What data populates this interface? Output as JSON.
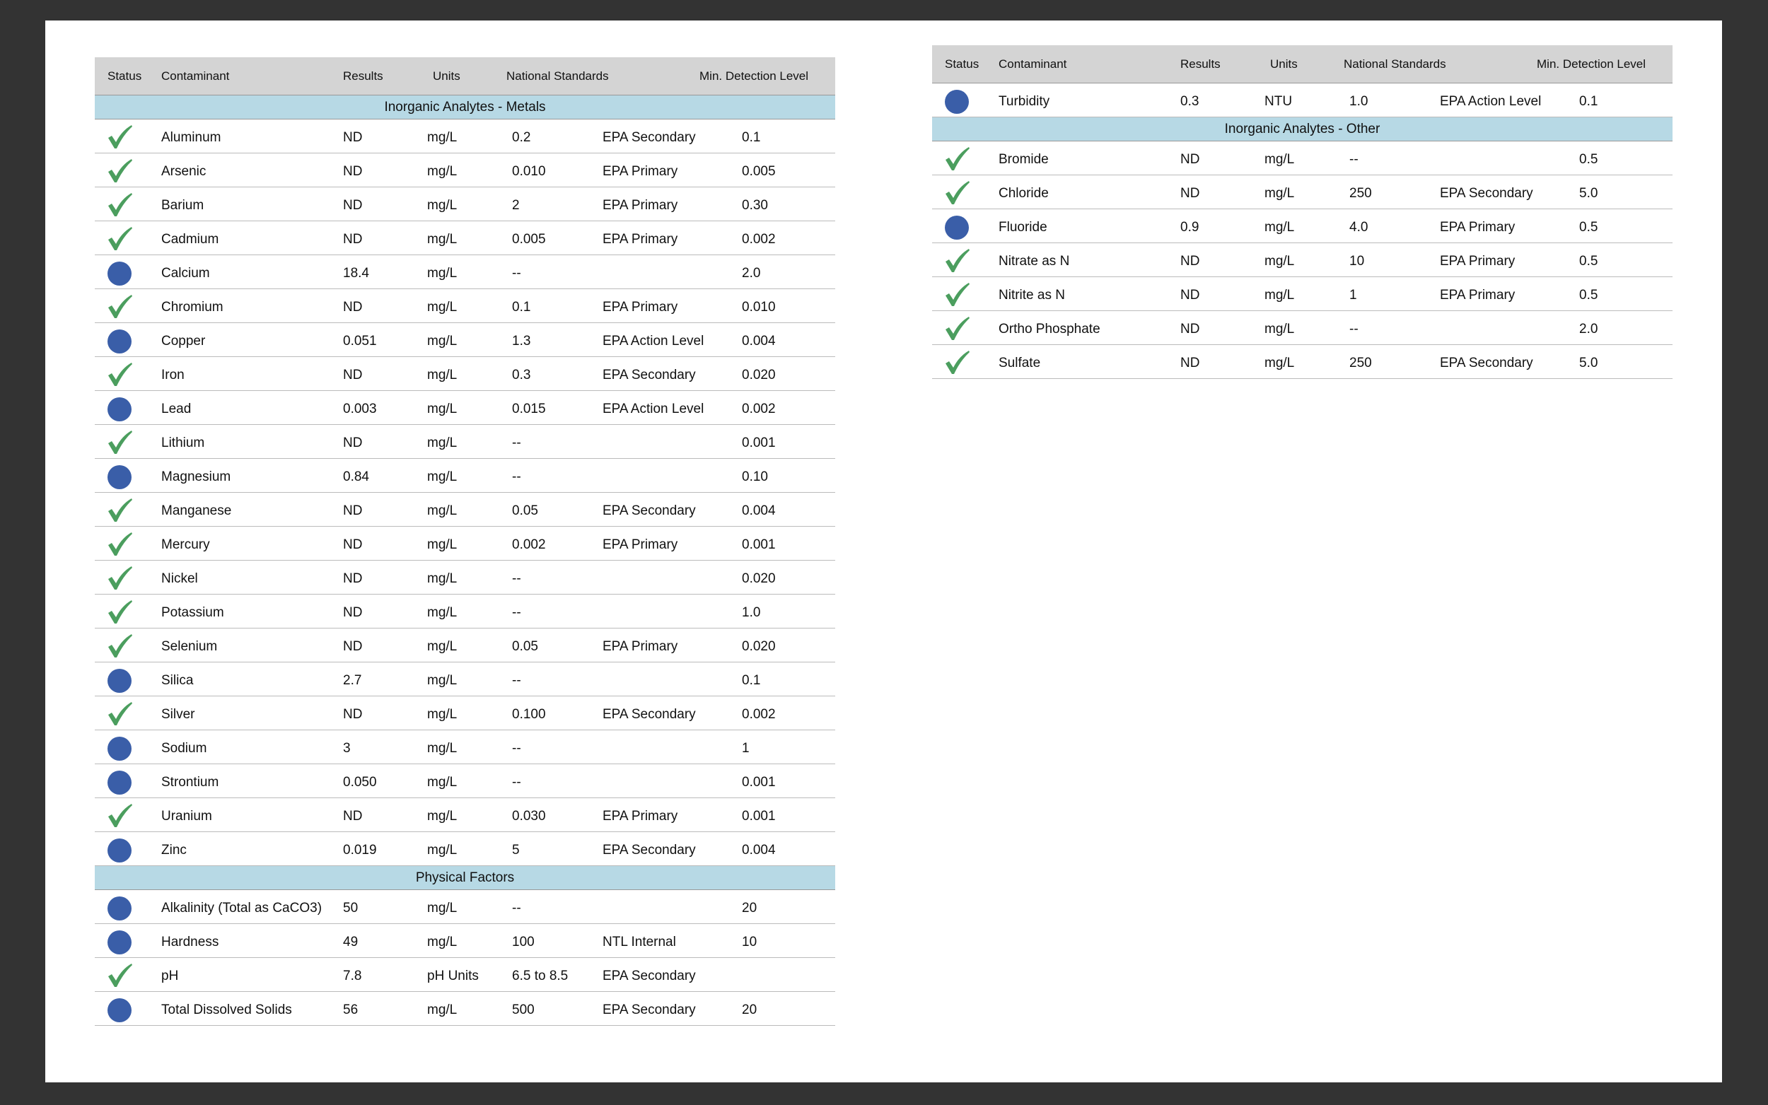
{
  "tables": [
    {
      "headers": [
        "Status",
        "Contaminant",
        "Results",
        "Units",
        "National Standards",
        "Min. Detection Level"
      ],
      "sections": [
        {
          "title": "Inorganic Analytes - Metals",
          "rows": [
            {
              "status": "check",
              "contaminant": "Aluminum",
              "results": "ND",
              "units": "mg/L",
              "standard": "0.2",
              "source": "EPA Secondary",
              "mdl": "0.1"
            },
            {
              "status": "check",
              "contaminant": "Arsenic",
              "results": "ND",
              "units": "mg/L",
              "standard": "0.010",
              "source": "EPA Primary",
              "mdl": "0.005"
            },
            {
              "status": "check",
              "contaminant": "Barium",
              "results": "ND",
              "units": "mg/L",
              "standard": "2",
              "source": "EPA Primary",
              "mdl": "0.30"
            },
            {
              "status": "check",
              "contaminant": "Cadmium",
              "results": "ND",
              "units": "mg/L",
              "standard": "0.005",
              "source": "EPA Primary",
              "mdl": "0.002"
            },
            {
              "status": "dot",
              "contaminant": "Calcium",
              "results": "18.4",
              "units": "mg/L",
              "standard": "--",
              "mdl": "2.0"
            },
            {
              "status": "check",
              "contaminant": "Chromium",
              "results": "ND",
              "units": "mg/L",
              "standard": "0.1",
              "source": "EPA Primary",
              "mdl": "0.010"
            },
            {
              "status": "dot",
              "contaminant": "Copper",
              "results": "0.051",
              "units": "mg/L",
              "standard": "1.3",
              "source": "EPA Action Level",
              "mdl": "0.004"
            },
            {
              "status": "check",
              "contaminant": "Iron",
              "results": "ND",
              "units": "mg/L",
              "standard": "0.3",
              "source": "EPA Secondary",
              "mdl": "0.020"
            },
            {
              "status": "dot",
              "contaminant": "Lead",
              "results": "0.003",
              "units": "mg/L",
              "standard": "0.015",
              "source": "EPA Action Level",
              "mdl": "0.002"
            },
            {
              "status": "check",
              "contaminant": "Lithium",
              "results": "ND",
              "units": "mg/L",
              "standard": "--",
              "mdl": "0.001"
            },
            {
              "status": "dot",
              "contaminant": "Magnesium",
              "results": "0.84",
              "units": "mg/L",
              "standard": "--",
              "mdl": "0.10"
            },
            {
              "status": "check",
              "contaminant": "Manganese",
              "results": "ND",
              "units": "mg/L",
              "standard": "0.05",
              "source": "EPA Secondary",
              "mdl": "0.004"
            },
            {
              "status": "check",
              "contaminant": "Mercury",
              "results": "ND",
              "units": "mg/L",
              "standard": "0.002",
              "source": "EPA Primary",
              "mdl": "0.001"
            },
            {
              "status": "check",
              "contaminant": "Nickel",
              "results": "ND",
              "units": "mg/L",
              "standard": "--",
              "mdl": "0.020"
            },
            {
              "status": "check",
              "contaminant": "Potassium",
              "results": "ND",
              "units": "mg/L",
              "standard": "--",
              "mdl": "1.0"
            },
            {
              "status": "check",
              "contaminant": "Selenium",
              "results": "ND",
              "units": "mg/L",
              "standard": "0.05",
              "source": "EPA Primary",
              "mdl": "0.020"
            },
            {
              "status": "dot",
              "contaminant": "Silica",
              "results": "2.7",
              "units": "mg/L",
              "standard": "--",
              "mdl": "0.1"
            },
            {
              "status": "check",
              "contaminant": "Silver",
              "results": "ND",
              "units": "mg/L",
              "standard": "0.100",
              "source": "EPA Secondary",
              "mdl": "0.002"
            },
            {
              "status": "dot",
              "contaminant": "Sodium",
              "results": "3",
              "units": "mg/L",
              "standard": "--",
              "mdl": "1"
            },
            {
              "status": "dot",
              "contaminant": "Strontium",
              "results": "0.050",
              "units": "mg/L",
              "standard": "--",
              "mdl": "0.001"
            },
            {
              "status": "check",
              "contaminant": "Uranium",
              "results": "ND",
              "units": "mg/L",
              "standard": "0.030",
              "source": "EPA Primary",
              "mdl": "0.001"
            },
            {
              "status": "dot",
              "contaminant": "Zinc",
              "results": "0.019",
              "units": "mg/L",
              "standard": "5",
              "source": "EPA Secondary",
              "mdl": "0.004"
            }
          ]
        },
        {
          "title": "Physical Factors",
          "rows": [
            {
              "status": "dot",
              "contaminant": "Alkalinity (Total as CaCO3)",
              "results": "50",
              "units": "mg/L",
              "standard": "--",
              "mdl": "20"
            },
            {
              "status": "dot",
              "contaminant": "Hardness",
              "results": "49",
              "units": "mg/L",
              "standard": "100",
              "source": "NTL Internal",
              "mdl": "10"
            },
            {
              "status": "check",
              "contaminant": "pH",
              "results": "7.8",
              "units": "pH Units",
              "standard": "6.5 to 8.5",
              "source": "EPA Secondary"
            },
            {
              "status": "dot",
              "contaminant": "Total Dissolved Solids",
              "results": "56",
              "units": "mg/L",
              "standard": "500",
              "source": "EPA Secondary",
              "mdl": "20"
            }
          ]
        }
      ]
    },
    {
      "headers": [
        "Status",
        "Contaminant",
        "Results",
        "Units",
        "National Standards",
        "Min. Detection Level"
      ],
      "sections": [
        {
          "rows": [
            {
              "status": "dot",
              "contaminant": "Turbidity",
              "results": "0.3",
              "units": "NTU",
              "standard": "1.0",
              "source": "EPA Action Level",
              "mdl": "0.1"
            }
          ]
        },
        {
          "title": "Inorganic Analytes - Other",
          "rows": [
            {
              "status": "check",
              "contaminant": "Bromide",
              "results": "ND",
              "units": "mg/L",
              "standard": "--",
              "mdl": "0.5"
            },
            {
              "status": "check",
              "contaminant": "Chloride",
              "results": "ND",
              "units": "mg/L",
              "standard": "250",
              "source": "EPA Secondary",
              "mdl": "5.0"
            },
            {
              "status": "dot",
              "contaminant": "Fluoride",
              "results": "0.9",
              "units": "mg/L",
              "standard": "4.0",
              "source": "EPA Primary",
              "mdl": "0.5"
            },
            {
              "status": "check",
              "contaminant": "Nitrate as N",
              "results": "ND",
              "units": "mg/L",
              "standard": "10",
              "source": "EPA Primary",
              "mdl": "0.5"
            },
            {
              "status": "check",
              "contaminant": "Nitrite as N",
              "results": "ND",
              "units": "mg/L",
              "standard": "1",
              "source": "EPA Primary",
              "mdl": "0.5"
            },
            {
              "status": "check",
              "contaminant": "Ortho Phosphate",
              "results": "ND",
              "units": "mg/L",
              "standard": "--",
              "mdl": "2.0"
            },
            {
              "status": "check",
              "contaminant": "Sulfate",
              "results": "ND",
              "units": "mg/L",
              "standard": "250",
              "source": "EPA Secondary",
              "mdl": "5.0"
            }
          ]
        }
      ]
    }
  ]
}
